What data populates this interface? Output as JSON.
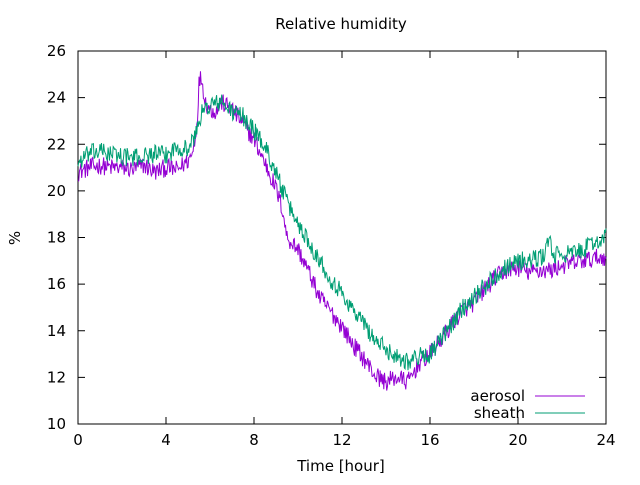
{
  "chart_data": {
    "type": "line",
    "title": "Relative humidity",
    "xlabel": "Time [hour]",
    "ylabel": "%",
    "xlim": [
      0,
      24
    ],
    "ylim": [
      10,
      26
    ],
    "xticks": [
      0,
      4,
      8,
      12,
      16,
      20,
      24
    ],
    "yticks": [
      10,
      12,
      14,
      16,
      18,
      20,
      22,
      24,
      26
    ],
    "grid": false,
    "legend_position": "bottom-right",
    "series": [
      {
        "name": "aerosol",
        "color": "#9400d3",
        "x": [
          0,
          0.5,
          1,
          1.5,
          2,
          2.5,
          3,
          3.5,
          4,
          4.5,
          5,
          5.2,
          5.4,
          5.5,
          5.6,
          5.8,
          6,
          6.3,
          6.5,
          7,
          7.5,
          8,
          8.5,
          9,
          9.3,
          9.5,
          10,
          10.5,
          11,
          11.5,
          12,
          12.5,
          13,
          13.5,
          14,
          14.5,
          15,
          15.5,
          16,
          16.5,
          17,
          17.5,
          18,
          18.5,
          19,
          19.5,
          20,
          20.5,
          21,
          21.5,
          22,
          22.5,
          23,
          23.5,
          24
        ],
        "values": [
          20.8,
          21.0,
          21.1,
          21.0,
          21.0,
          20.9,
          21.1,
          20.8,
          21.0,
          20.9,
          21.3,
          21.6,
          22.8,
          24.6,
          24.9,
          23.8,
          23.5,
          23.4,
          23.8,
          23.5,
          22.9,
          22.2,
          21.2,
          20.1,
          19.2,
          18.0,
          17.5,
          16.5,
          15.4,
          14.8,
          14.2,
          13.4,
          12.8,
          12.1,
          11.8,
          12.0,
          11.8,
          12.6,
          13.0,
          13.6,
          14.3,
          14.9,
          15.2,
          15.8,
          16.3,
          16.6,
          16.7,
          16.5,
          16.6,
          16.6,
          16.8,
          16.9,
          17.0,
          17.1,
          17.2
        ]
      },
      {
        "name": "sheath",
        "color": "#009e73",
        "x": [
          0,
          0.5,
          1,
          1.5,
          2,
          2.5,
          3,
          3.5,
          4,
          4.5,
          5,
          5.3,
          5.6,
          6,
          6.5,
          7,
          7.5,
          8,
          8.5,
          9,
          9.5,
          10,
          10.5,
          11,
          11.5,
          12,
          12.5,
          13,
          13.5,
          14,
          14.5,
          15,
          15.5,
          16,
          16.5,
          17,
          17.5,
          18,
          18.5,
          19,
          19.5,
          20,
          20.5,
          21,
          21.2,
          21.4,
          21.6,
          22,
          22.5,
          23,
          23.5,
          24
        ],
        "values": [
          21.2,
          21.6,
          21.7,
          21.6,
          21.5,
          21.4,
          21.5,
          21.6,
          21.5,
          21.9,
          21.8,
          22.3,
          23.3,
          23.7,
          23.8,
          23.4,
          23.2,
          22.6,
          21.9,
          20.8,
          19.5,
          18.6,
          17.8,
          17.0,
          16.2,
          15.6,
          14.9,
          14.3,
          13.6,
          13.2,
          12.9,
          12.7,
          12.9,
          13.0,
          13.6,
          14.3,
          15.0,
          15.5,
          15.9,
          16.4,
          16.8,
          17.0,
          17.0,
          17.1,
          17.3,
          18.0,
          17.2,
          17.3,
          17.3,
          17.5,
          17.8,
          18.0
        ]
      }
    ]
  }
}
